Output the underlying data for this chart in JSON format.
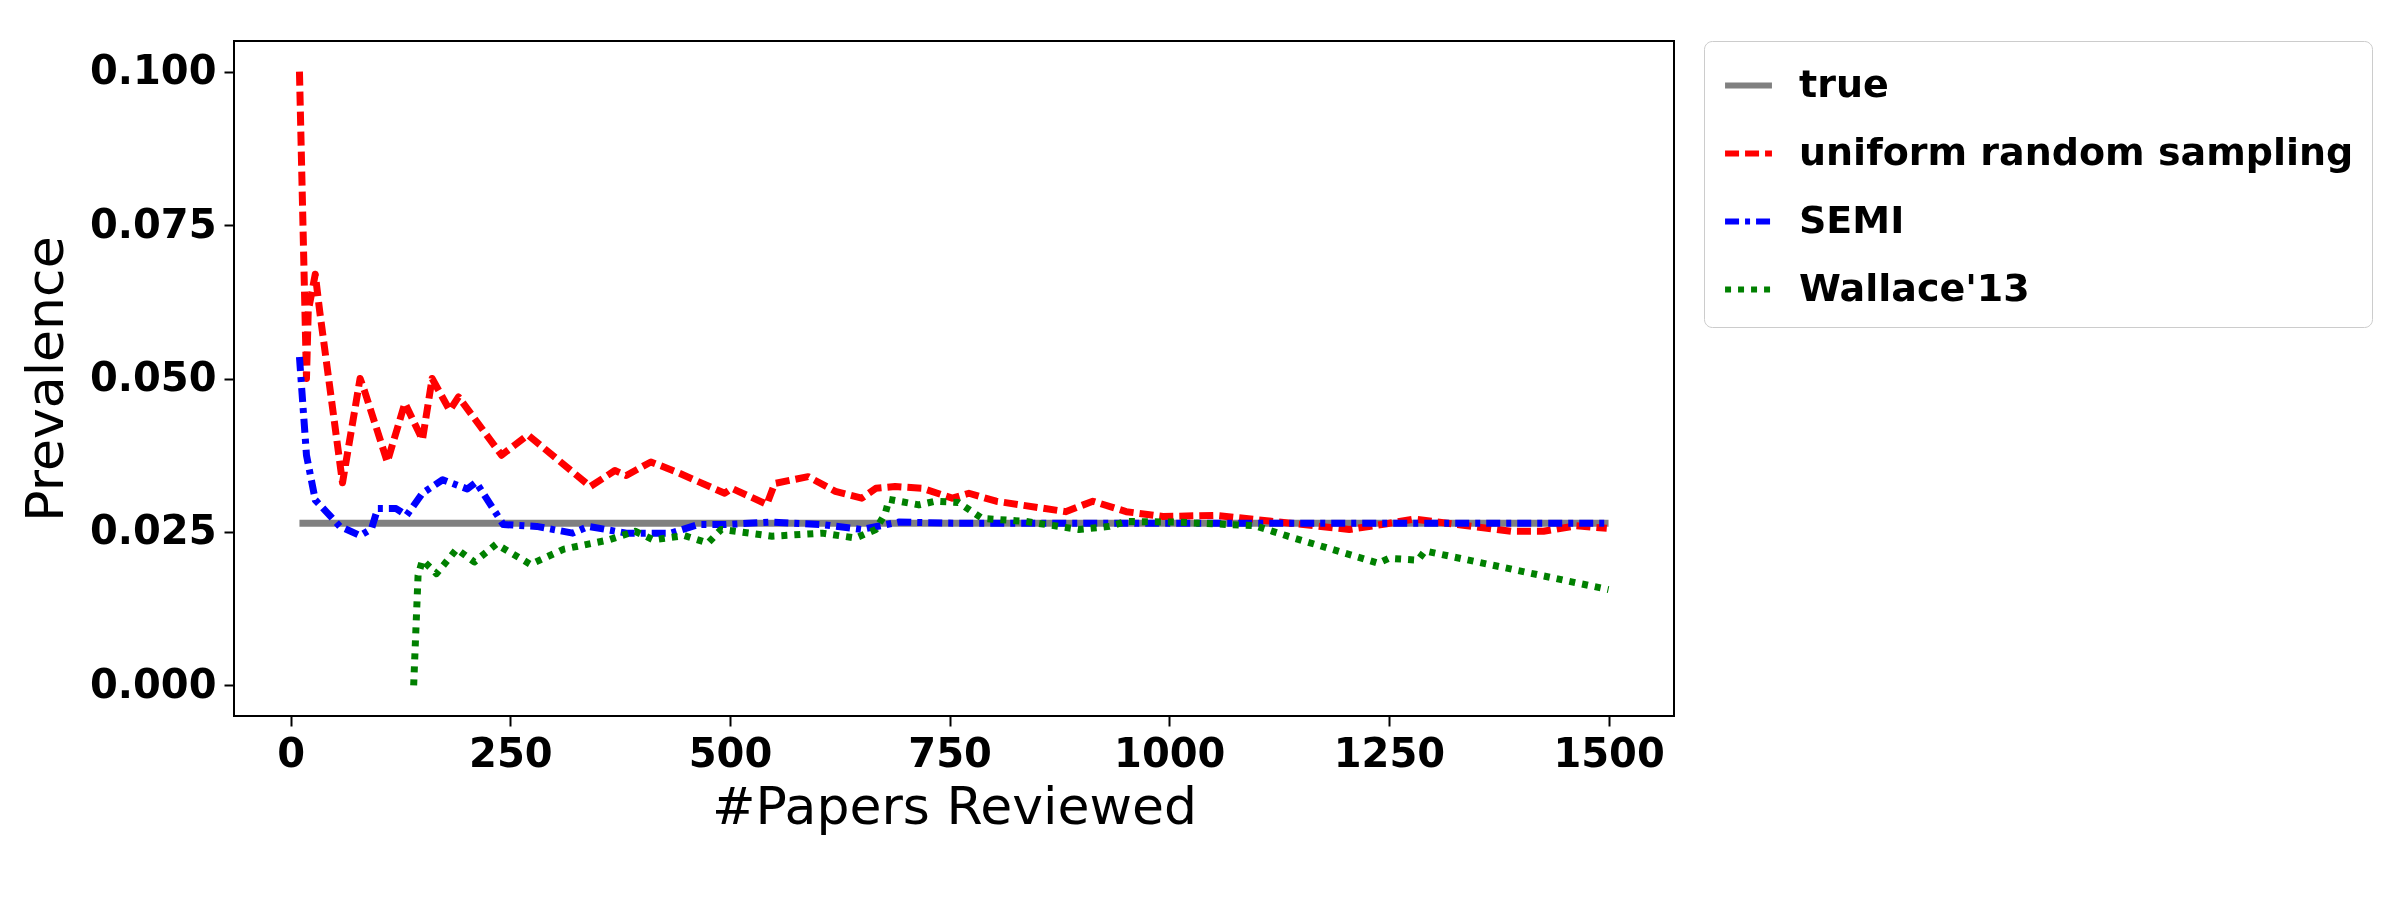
{
  "chart_data": {
    "type": "line",
    "xlabel": "#Papers Reviewed",
    "ylabel": "Prevalence",
    "xlim": [
      -64.5,
      1574.5
    ],
    "ylim": [
      -0.005,
      0.105
    ],
    "xticks": [
      0,
      250,
      500,
      750,
      1000,
      1250,
      1500
    ],
    "yticks": [
      {
        "value": 0,
        "label": "0.000"
      },
      {
        "value": 0.025,
        "label": "0.025"
      },
      {
        "value": 0.05,
        "label": "0.050"
      },
      {
        "value": 0.075,
        "label": "0.075"
      },
      {
        "value": 0.1,
        "label": "0.100"
      }
    ],
    "grid": false,
    "legend": "top right",
    "series": [
      {
        "name": "true",
        "color": "#808080",
        "line_style": "solid",
        "x": [
          10,
          1500
        ],
        "values": [
          0.0264,
          0.0264
        ]
      },
      {
        "name": "uniform random sampling",
        "color": "#ff0000",
        "line_style": "dashed",
        "x": [
          10,
          18,
          20,
          28,
          33,
          59,
          79,
          84,
          110,
          130,
          150,
          161,
          181,
          191,
          240,
          270,
          341,
          369,
          382,
          410,
          437,
          494,
          502,
          542,
          551,
          589,
          620,
          650,
          666,
          688,
          719,
          753,
          772,
          803,
          882,
          913,
          951,
          993,
          1053,
          1205,
          1246,
          1279,
          1389,
          1426,
          1463,
          1498
        ],
        "values": [
          0.1,
          0.05,
          0.061,
          0.067,
          0.061,
          0.033,
          0.05,
          0.048,
          0.0364,
          0.046,
          0.04,
          0.05,
          0.0448,
          0.047,
          0.0375,
          0.0408,
          0.0324,
          0.035,
          0.0342,
          0.0364,
          0.0349,
          0.0313,
          0.0321,
          0.0295,
          0.0329,
          0.034,
          0.0316,
          0.0305,
          0.0321,
          0.0324,
          0.0321,
          0.0305,
          0.0313,
          0.03,
          0.0283,
          0.03,
          0.0283,
          0.0275,
          0.0277,
          0.0254,
          0.0263,
          0.0271,
          0.0251,
          0.0251,
          0.026,
          0.0256
        ]
      },
      {
        "name": "SEMI",
        "color": "#0000ff",
        "line_style": "dashdot",
        "x": [
          10,
          18,
          28,
          56,
          79,
          92,
          99,
          120,
          132,
          150,
          173,
          201,
          211,
          242,
          280,
          321,
          339,
          382,
          433,
          464,
          494,
          548,
          605,
          650,
          692,
          760,
          1000,
          1250,
          1500
        ],
        "values": [
          0.0535,
          0.0375,
          0.0302,
          0.0259,
          0.0244,
          0.0255,
          0.0288,
          0.0288,
          0.0277,
          0.0313,
          0.0335,
          0.032,
          0.0331,
          0.0262,
          0.0259,
          0.0248,
          0.0259,
          0.0248,
          0.0248,
          0.0262,
          0.0262,
          0.0266,
          0.0262,
          0.0254,
          0.0266,
          0.0264,
          0.0264,
          0.0264,
          0.0264
        ]
      },
      {
        "name": "Wallace'13",
        "color": "#008000",
        "line_style": "dotted",
        "x": [
          140,
          145,
          150,
          166,
          189,
          209,
          234,
          273,
          311,
          362,
          392,
          413,
          448,
          475,
          490,
          548,
          605,
          643,
          666,
          677,
          681,
          715,
          734,
          760,
          787,
          837,
          897,
          932,
          951,
          1008,
          1098,
          1135,
          1238,
          1250,
          1283,
          1291,
          1500
        ],
        "values": [
          0.0,
          0.0179,
          0.0204,
          0.0182,
          0.0222,
          0.0201,
          0.023,
          0.0197,
          0.0222,
          0.0237,
          0.0251,
          0.0237,
          0.0244,
          0.0232,
          0.0254,
          0.0243,
          0.0248,
          0.024,
          0.0254,
          0.0281,
          0.0303,
          0.0294,
          0.03,
          0.0298,
          0.0272,
          0.0267,
          0.0254,
          0.0259,
          0.0267,
          0.0266,
          0.026,
          0.0243,
          0.0199,
          0.0207,
          0.0204,
          0.0219,
          0.0156
        ]
      }
    ]
  }
}
